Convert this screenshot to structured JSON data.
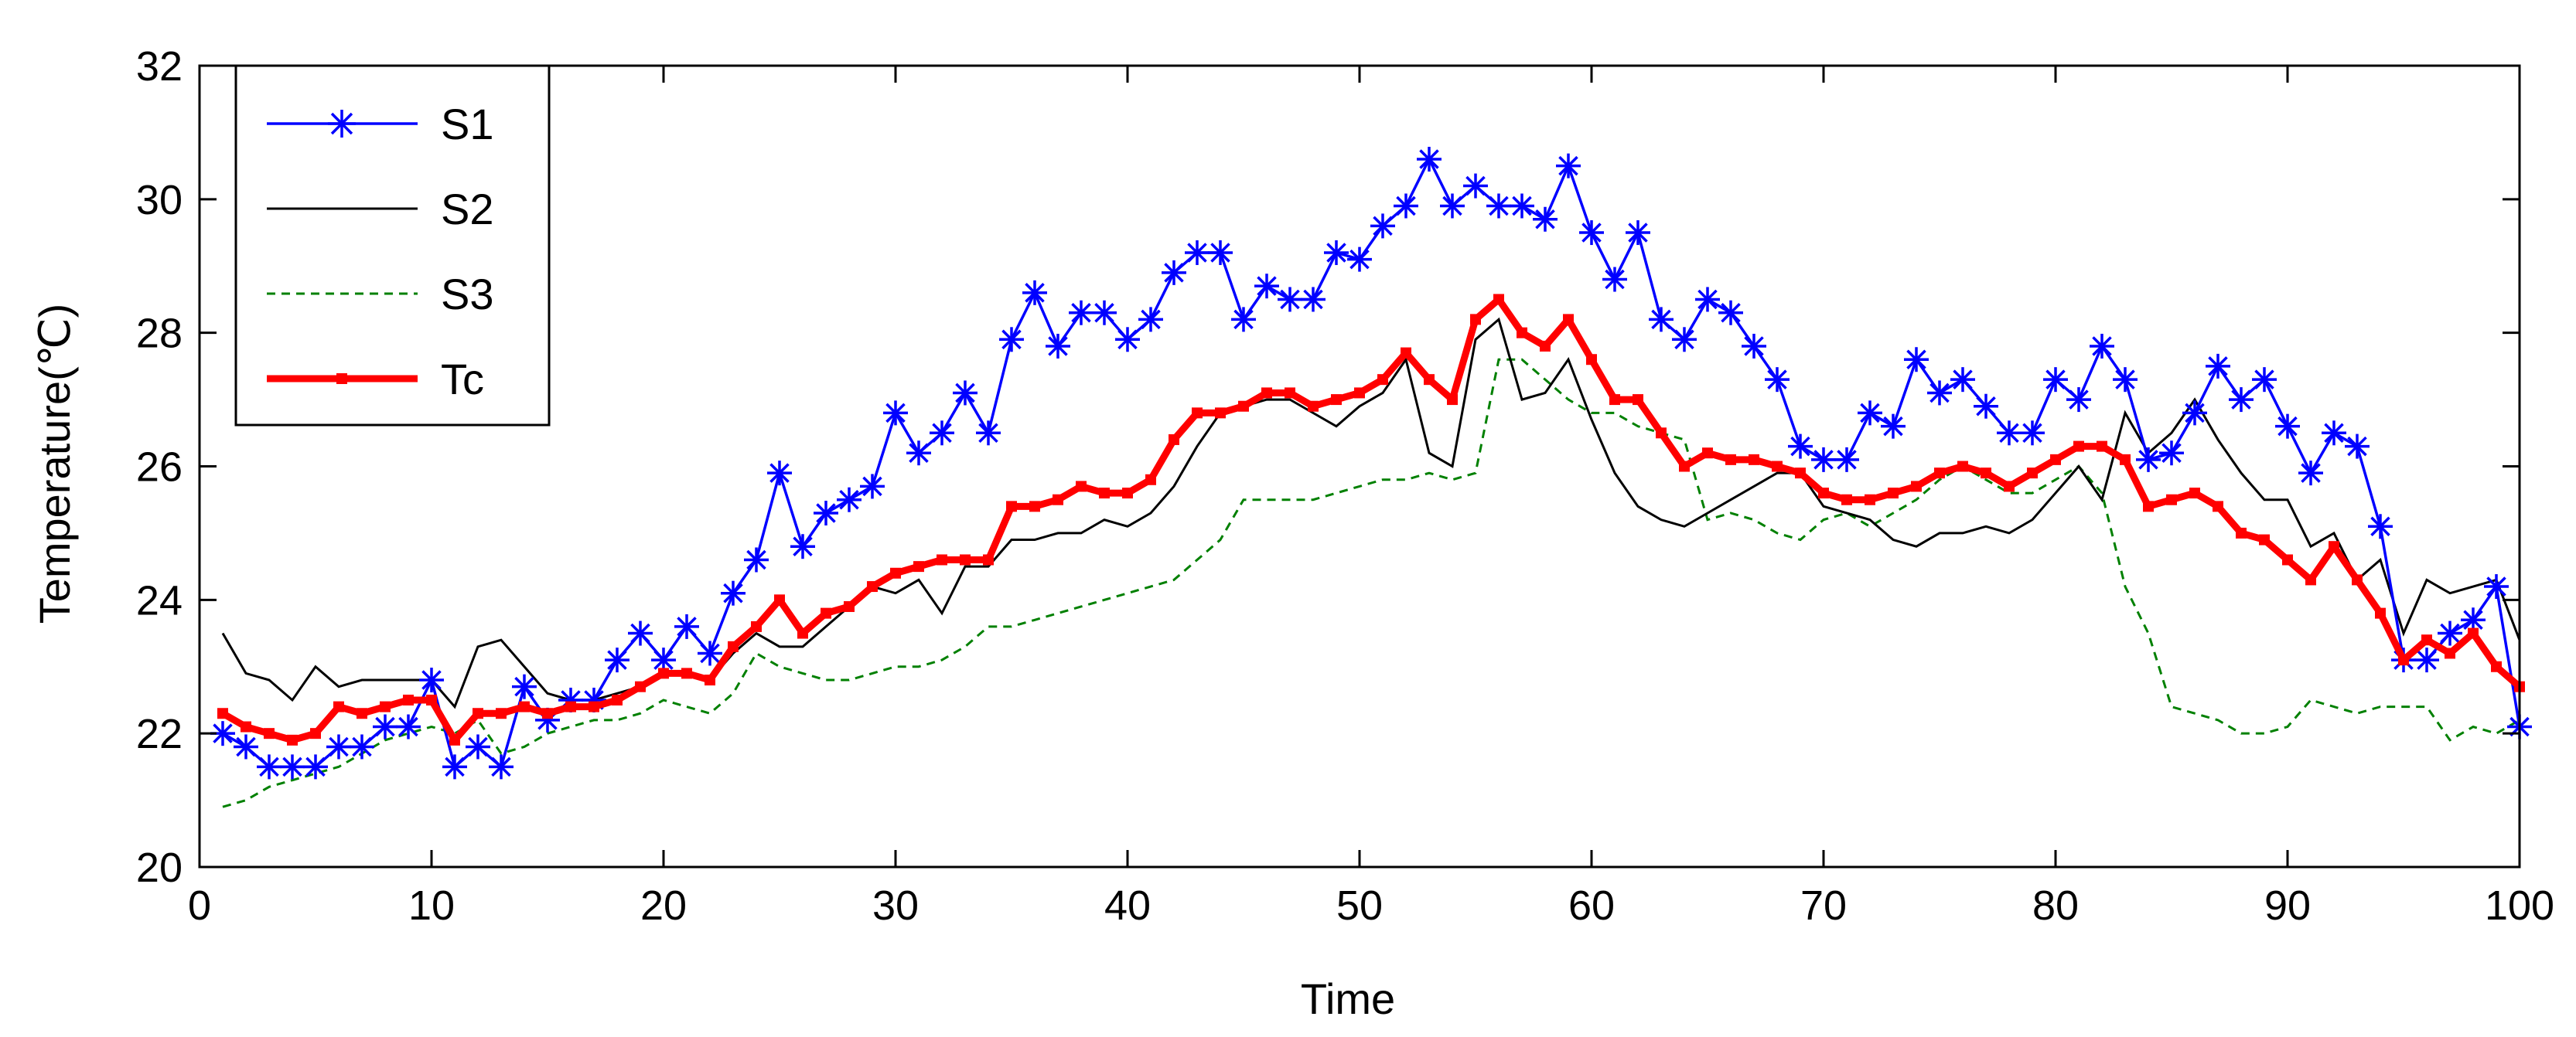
{
  "chart_data": {
    "type": "line",
    "xlabel": "Time",
    "ylabel": "Temperature(℃)",
    "xlim": [
      0,
      100
    ],
    "ylim": [
      20,
      32
    ],
    "xticks": [
      0,
      10,
      20,
      30,
      40,
      50,
      60,
      70,
      80,
      90,
      100
    ],
    "yticks": [
      20,
      22,
      24,
      26,
      28,
      30,
      32
    ],
    "grid": false,
    "legend_position": "top-left",
    "x": [
      1,
      2,
      3,
      4,
      5,
      6,
      7,
      8,
      9,
      10,
      11,
      12,
      13,
      14,
      15,
      16,
      17,
      18,
      19,
      20,
      21,
      22,
      23,
      24,
      25,
      26,
      27,
      28,
      29,
      30,
      31,
      32,
      33,
      34,
      35,
      36,
      37,
      38,
      39,
      40,
      41,
      42,
      43,
      44,
      45,
      46,
      47,
      48,
      49,
      50,
      51,
      52,
      53,
      54,
      55,
      56,
      57,
      58,
      59,
      60,
      61,
      62,
      63,
      64,
      65,
      66,
      67,
      68,
      69,
      70,
      71,
      72,
      73,
      74,
      75,
      76,
      77,
      78,
      79,
      80,
      81,
      82,
      83,
      84,
      85,
      86,
      87,
      88,
      89,
      90,
      91,
      92,
      93,
      94,
      95,
      96,
      97,
      98,
      99,
      100
    ],
    "series": [
      {
        "name": "S1",
        "color": "#0000ff",
        "style": "solid-star",
        "values": [
          22.0,
          21.8,
          21.5,
          21.5,
          21.5,
          21.8,
          21.8,
          22.1,
          22.1,
          22.8,
          21.5,
          21.8,
          21.5,
          22.7,
          22.2,
          22.5,
          22.5,
          23.1,
          23.5,
          23.1,
          23.6,
          23.2,
          24.1,
          24.6,
          25.9,
          24.8,
          25.3,
          25.5,
          25.7,
          26.8,
          26.2,
          26.5,
          27.1,
          26.5,
          27.9,
          28.6,
          27.8,
          28.3,
          28.3,
          27.9,
          28.2,
          28.9,
          29.2,
          29.2,
          28.2,
          28.7,
          28.5,
          28.5,
          29.2,
          29.1,
          29.6,
          29.9,
          30.6,
          29.9,
          30.2,
          29.9,
          29.9,
          29.7,
          30.5,
          29.5,
          28.8,
          29.5,
          28.2,
          27.9,
          28.5,
          28.3,
          27.8,
          27.3,
          26.3,
          26.1,
          26.1,
          26.8,
          26.6,
          27.6,
          27.1,
          27.3,
          26.9,
          26.5,
          26.5,
          27.3,
          27.0,
          27.8,
          27.3,
          26.1,
          26.2,
          26.8,
          27.5,
          27.0,
          27.3,
          26.6,
          25.9,
          26.5,
          26.3,
          25.1,
          23.1,
          23.1,
          23.5,
          23.7,
          24.2,
          22.1
        ]
      },
      {
        "name": "S2",
        "color": "#000000",
        "style": "solid",
        "values": [
          23.5,
          22.9,
          22.8,
          22.5,
          23.0,
          22.7,
          22.8,
          22.8,
          22.8,
          22.8,
          22.4,
          23.3,
          23.4,
          23.0,
          22.6,
          22.5,
          22.5,
          22.6,
          22.7,
          22.9,
          22.9,
          22.8,
          23.2,
          23.5,
          23.3,
          23.3,
          23.6,
          23.9,
          24.2,
          24.1,
          24.3,
          23.8,
          24.5,
          24.5,
          24.9,
          24.9,
          25.0,
          25.0,
          25.2,
          25.1,
          25.3,
          25.7,
          26.3,
          26.8,
          26.9,
          27.0,
          27.0,
          26.8,
          26.6,
          26.9,
          27.1,
          27.6,
          26.2,
          26.0,
          27.9,
          28.2,
          27.0,
          27.1,
          27.6,
          26.7,
          25.9,
          25.4,
          25.2,
          25.1,
          25.3,
          25.5,
          25.7,
          25.9,
          25.9,
          25.4,
          25.3,
          25.2,
          24.9,
          24.8,
          25.0,
          25.0,
          25.1,
          25.0,
          25.2,
          25.6,
          26.0,
          25.5,
          26.8,
          26.2,
          26.5,
          27.0,
          26.4,
          25.9,
          25.5,
          25.5,
          24.8,
          25.0,
          24.3,
          24.6,
          23.5,
          24.3,
          24.1,
          24.2,
          24.3,
          23.4
        ]
      },
      {
        "name": "S3",
        "color": "#008000",
        "style": "dashed",
        "values": [
          20.9,
          21.0,
          21.2,
          21.3,
          21.4,
          21.5,
          21.7,
          21.9,
          22.0,
          22.1,
          22.0,
          22.2,
          21.7,
          21.8,
          22.0,
          22.1,
          22.2,
          22.2,
          22.3,
          22.5,
          22.4,
          22.3,
          22.6,
          23.2,
          23.0,
          22.9,
          22.8,
          22.8,
          22.9,
          23.0,
          23.0,
          23.1,
          23.3,
          23.6,
          23.6,
          23.7,
          23.8,
          23.9,
          24.0,
          24.1,
          24.2,
          24.3,
          24.6,
          24.9,
          25.5,
          25.5,
          25.5,
          25.5,
          25.6,
          25.7,
          25.8,
          25.8,
          25.9,
          25.8,
          25.9,
          27.6,
          27.6,
          27.3,
          27.0,
          26.8,
          26.8,
          26.6,
          26.5,
          26.4,
          25.2,
          25.3,
          25.2,
          25.0,
          24.9,
          25.2,
          25.3,
          25.1,
          25.3,
          25.5,
          25.8,
          26.0,
          25.8,
          25.6,
          25.6,
          25.8,
          26.0,
          25.6,
          24.2,
          23.5,
          22.4,
          22.3,
          22.2,
          22.0,
          22.0,
          22.1,
          22.5,
          22.4,
          22.3,
          22.4,
          22.4,
          22.4,
          21.9,
          22.1,
          22.0,
          22.2
        ]
      },
      {
        "name": "Tc",
        "color": "#ff0000",
        "style": "thick-square",
        "values": [
          22.3,
          22.1,
          22.0,
          21.9,
          22.0,
          22.4,
          22.3,
          22.4,
          22.5,
          22.5,
          21.9,
          22.3,
          22.3,
          22.4,
          22.3,
          22.4,
          22.4,
          22.5,
          22.7,
          22.9,
          22.9,
          22.8,
          23.3,
          23.6,
          24.0,
          23.5,
          23.8,
          23.9,
          24.2,
          24.4,
          24.5,
          24.6,
          24.6,
          24.6,
          25.4,
          25.4,
          25.5,
          25.7,
          25.6,
          25.6,
          25.8,
          26.4,
          26.8,
          26.8,
          26.9,
          27.1,
          27.1,
          26.9,
          27.0,
          27.1,
          27.3,
          27.7,
          27.3,
          27.0,
          28.2,
          28.5,
          28.0,
          27.8,
          28.2,
          27.6,
          27.0,
          27.0,
          26.5,
          26.0,
          26.2,
          26.1,
          26.1,
          26.0,
          25.9,
          25.6,
          25.5,
          25.5,
          25.6,
          25.7,
          25.9,
          26.0,
          25.9,
          25.7,
          25.9,
          26.1,
          26.3,
          26.3,
          26.1,
          25.4,
          25.5,
          25.6,
          25.4,
          25.0,
          24.9,
          24.6,
          24.3,
          24.8,
          24.3,
          23.8,
          23.1,
          23.4,
          23.2,
          23.5,
          23.0,
          22.7
        ]
      }
    ]
  }
}
